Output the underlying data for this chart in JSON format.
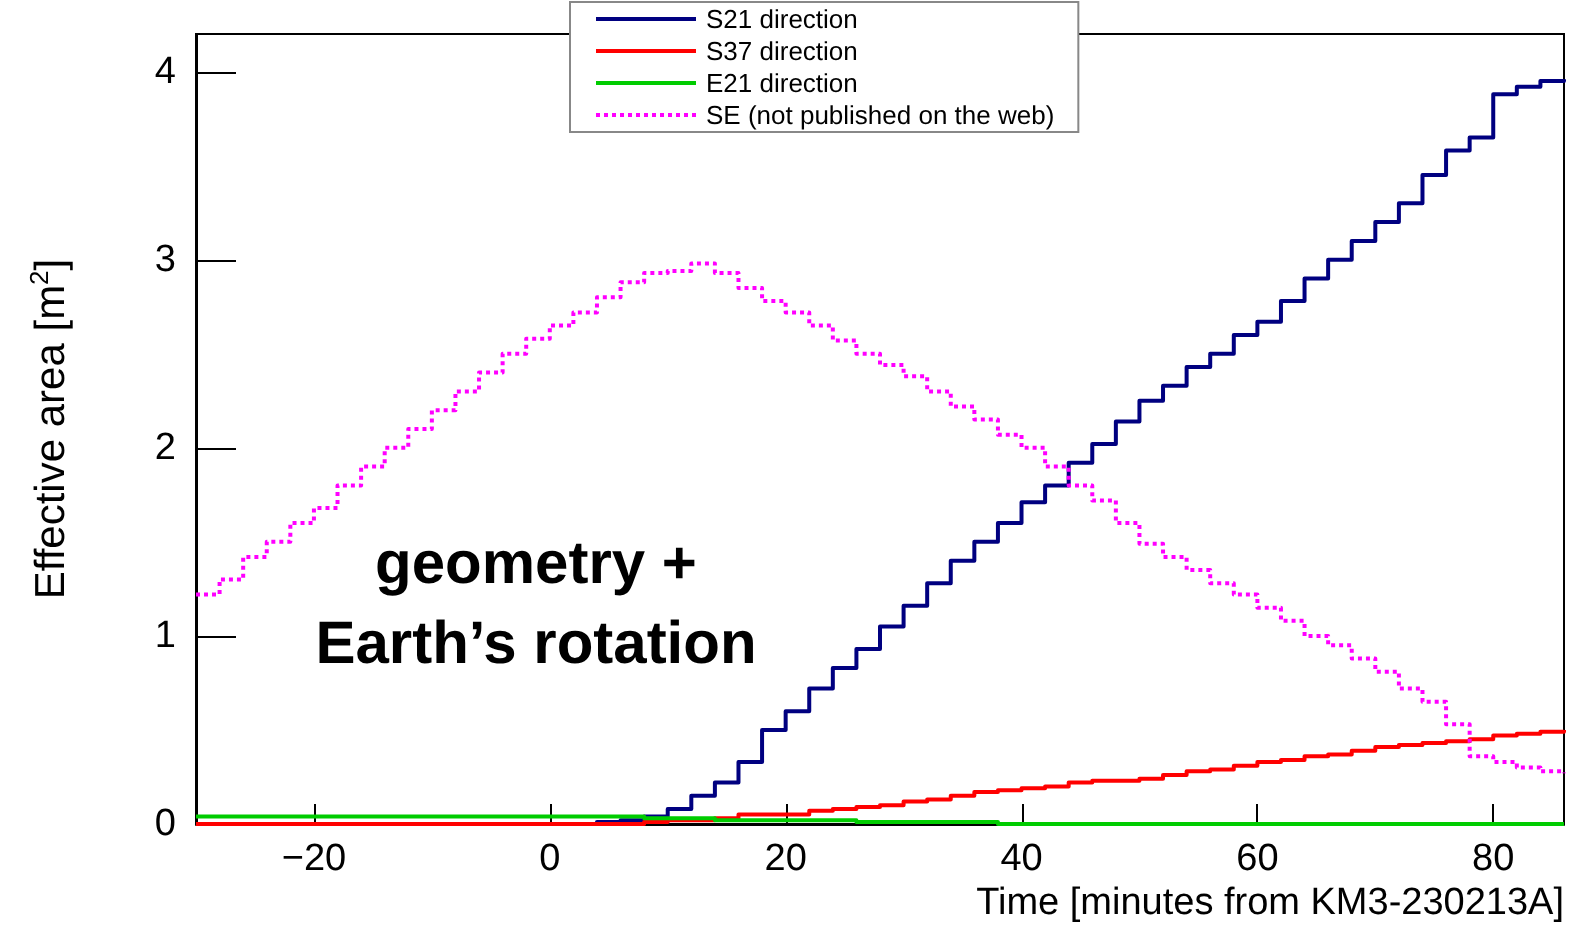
{
  "chart_data": {
    "type": "step",
    "xlabel": "Time [minutes from KM3-230213A]",
    "ylabel": "Effective area [m$^{2}$]",
    "annotations": [
      "geometry +\nEarth’s rotation"
    ],
    "xlim": [
      -30,
      86
    ],
    "ylim": [
      0,
      4.2
    ],
    "xticks": [
      -20,
      0,
      20,
      40,
      60,
      80
    ],
    "yticks": [
      0,
      1,
      2,
      3,
      4
    ],
    "grid": false,
    "legend": "top right",
    "marker": "none",
    "x": [
      -30,
      -28,
      -26,
      -24,
      -22,
      -20,
      -18,
      -16,
      -14,
      -12,
      -10,
      -8,
      -6,
      -4,
      -2,
      0,
      2,
      4,
      6,
      8,
      10,
      12,
      14,
      16,
      18,
      20,
      22,
      24,
      26,
      28,
      30,
      32,
      34,
      36,
      38,
      40,
      42,
      44,
      46,
      48,
      50,
      52,
      54,
      56,
      58,
      60,
      62,
      64,
      66,
      68,
      70,
      72,
      74,
      76,
      78,
      80,
      82,
      84,
      86
    ],
    "series": [
      {
        "name": "S21 direction",
        "color": "#000080",
        "line_style": "solid",
        "values": [
          null,
          null,
          null,
          null,
          null,
          null,
          null,
          null,
          null,
          null,
          null,
          null,
          null,
          null,
          null,
          null,
          0,
          0.01,
          0.02,
          0.04,
          0.08,
          0.15,
          0.22,
          0.33,
          0.5,
          0.6,
          0.72,
          0.83,
          0.93,
          1.05,
          1.16,
          1.28,
          1.4,
          1.5,
          1.6,
          1.71,
          1.8,
          1.92,
          2.02,
          2.14,
          2.25,
          2.33,
          2.43,
          2.5,
          2.6,
          2.67,
          2.78,
          2.9,
          3.0,
          3.1,
          3.2,
          3.3,
          3.45,
          3.58,
          3.65,
          3.88,
          3.92,
          3.95,
          3.96
        ]
      },
      {
        "name": "S37 direction",
        "color": "#ff0000",
        "line_style": "solid",
        "values": [
          0,
          0,
          0,
          0,
          0,
          0,
          0,
          0,
          0,
          0,
          0,
          0,
          0,
          0,
          0,
          0,
          0,
          0,
          0,
          0.01,
          0.02,
          0.02,
          0.03,
          0.05,
          0.05,
          0.05,
          0.07,
          0.08,
          0.09,
          0.1,
          0.12,
          0.13,
          0.15,
          0.17,
          0.18,
          0.19,
          0.2,
          0.22,
          0.23,
          0.23,
          0.24,
          0.26,
          0.28,
          0.29,
          0.31,
          0.33,
          0.34,
          0.36,
          0.37,
          0.39,
          0.41,
          0.42,
          0.43,
          0.44,
          0.45,
          0.47,
          0.48,
          0.49,
          0.5
        ]
      },
      {
        "name": "E21 direction",
        "color": "#00cc00",
        "line_style": "solid",
        "values": [
          0.04,
          0.04,
          0.04,
          0.04,
          0.04,
          0.04,
          0.04,
          0.04,
          0.04,
          0.04,
          0.04,
          0.04,
          0.04,
          0.04,
          0.04,
          0.04,
          0.04,
          0.04,
          0.04,
          0.03,
          0.03,
          0.03,
          0.02,
          0.02,
          0.02,
          0.02,
          0.02,
          0.02,
          0.01,
          0.01,
          0.01,
          0.01,
          0.01,
          0.01,
          0,
          0,
          0,
          0,
          0,
          0,
          0,
          0,
          0,
          0,
          0,
          0,
          0,
          0,
          0,
          0,
          0,
          0,
          0,
          0,
          0,
          0,
          0,
          0,
          0
        ]
      },
      {
        "name": "SE (not published on the web)",
        "color": "#ff00ff",
        "line_style": "dotted",
        "values": [
          1.22,
          1.3,
          1.42,
          1.5,
          1.6,
          1.68,
          1.8,
          1.9,
          2.0,
          2.1,
          2.2,
          2.3,
          2.4,
          2.5,
          2.58,
          2.65,
          2.72,
          2.8,
          2.88,
          2.93,
          2.94,
          2.98,
          2.93,
          2.85,
          2.78,
          2.72,
          2.65,
          2.57,
          2.5,
          2.44,
          2.38,
          2.3,
          2.22,
          2.15,
          2.07,
          2.0,
          1.9,
          1.8,
          1.72,
          1.6,
          1.49,
          1.42,
          1.35,
          1.28,
          1.22,
          1.15,
          1.08,
          1.0,
          0.95,
          0.88,
          0.81,
          0.72,
          0.65,
          0.53,
          0.36,
          0.33,
          0.3,
          0.28,
          0.27
        ]
      }
    ]
  }
}
